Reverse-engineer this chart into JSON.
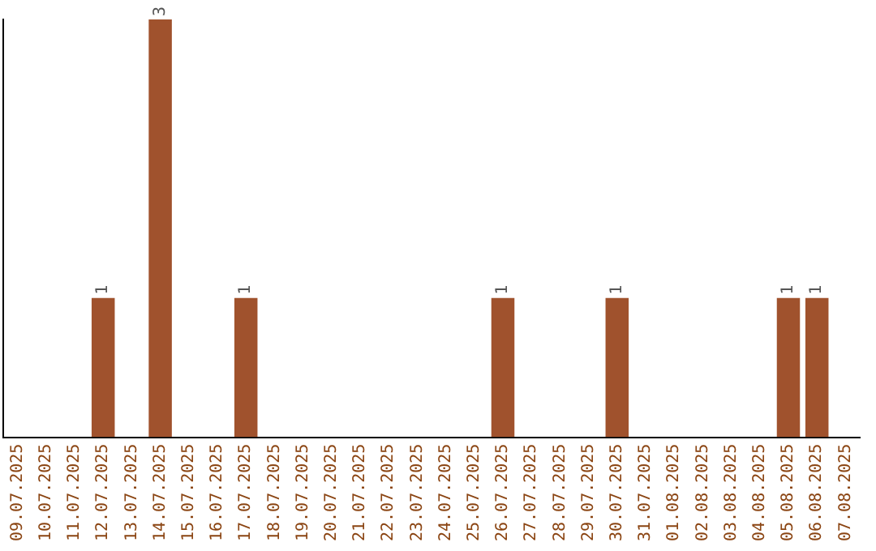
{
  "chart_data": {
    "type": "bar",
    "categories": [
      "09.07.2025",
      "10.07.2025",
      "11.07.2025",
      "12.07.2025",
      "13.07.2025",
      "14.07.2025",
      "15.07.2025",
      "16.07.2025",
      "17.07.2025",
      "18.07.2025",
      "19.07.2025",
      "20.07.2025",
      "21.07.2025",
      "22.07.2025",
      "23.07.2025",
      "24.07.2025",
      "25.07.2025",
      "26.07.2025",
      "27.07.2025",
      "28.07.2025",
      "29.07.2025",
      "30.07.2025",
      "31.07.2025",
      "01.08.2025",
      "02.08.2025",
      "03.08.2025",
      "04.08.2025",
      "05.08.2025",
      "06.08.2025",
      "07.08.2025"
    ],
    "values": [
      0,
      0,
      0,
      1,
      0,
      3,
      0,
      0,
      1,
      0,
      0,
      0,
      0,
      0,
      0,
      0,
      0,
      1,
      0,
      0,
      0,
      1,
      0,
      0,
      0,
      0,
      0,
      1,
      1,
      0
    ],
    "color": "#a0522d",
    "value_labels": [
      null,
      null,
      null,
      "1",
      null,
      "3",
      null,
      null,
      "1",
      null,
      null,
      null,
      null,
      null,
      null,
      null,
      null,
      "1",
      null,
      null,
      null,
      "1",
      null,
      null,
      null,
      null,
      null,
      "1",
      "1",
      null
    ],
    "grid": false,
    "legend": false
  }
}
